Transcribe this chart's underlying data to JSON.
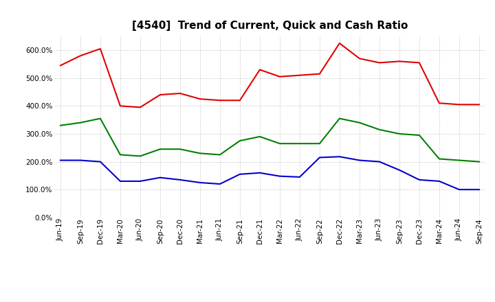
{
  "title": "[4540]  Trend of Current, Quick and Cash Ratio",
  "x_labels": [
    "Jun-19",
    "Sep-19",
    "Dec-19",
    "Mar-20",
    "Jun-20",
    "Sep-20",
    "Dec-20",
    "Mar-21",
    "Jun-21",
    "Sep-21",
    "Dec-21",
    "Mar-22",
    "Jun-22",
    "Sep-22",
    "Dec-22",
    "Mar-23",
    "Jun-23",
    "Sep-23",
    "Dec-23",
    "Mar-24",
    "Jun-24",
    "Sep-24"
  ],
  "current_ratio": [
    545,
    580,
    605,
    400,
    395,
    440,
    445,
    425,
    420,
    420,
    530,
    505,
    510,
    515,
    625,
    570,
    555,
    560,
    555,
    410,
    405,
    405
  ],
  "quick_ratio": [
    330,
    340,
    355,
    225,
    220,
    245,
    245,
    230,
    225,
    275,
    290,
    265,
    265,
    265,
    355,
    340,
    315,
    300,
    295,
    210,
    205,
    200
  ],
  "cash_ratio": [
    205,
    205,
    200,
    130,
    130,
    143,
    135,
    125,
    120,
    155,
    160,
    148,
    145,
    215,
    218,
    205,
    200,
    170,
    135,
    130,
    100,
    100
  ],
  "current_color": "#e00000",
  "quick_color": "#008000",
  "cash_color": "#0000cd",
  "ylim": [
    0,
    650
  ],
  "yticks": [
    0,
    100,
    200,
    300,
    400,
    500,
    600
  ],
  "background_color": "#ffffff",
  "grid_color": "#bbbbbb",
  "title_fontsize": 11,
  "tick_fontsize": 7.5,
  "legend_fontsize": 9
}
